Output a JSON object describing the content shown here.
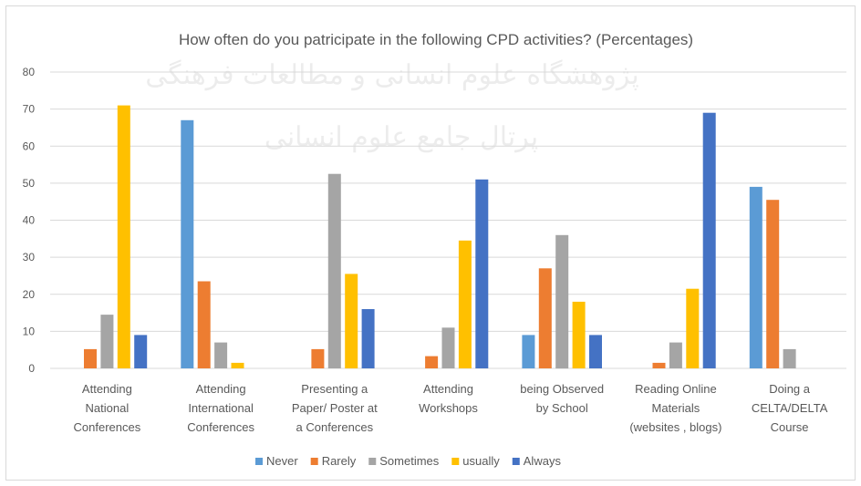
{
  "chart_data": {
    "type": "bar",
    "title": "How often do you patricipate in the following CPD activities? (Percentages)",
    "watermark": [
      "پژوهشگاه علوم انسانی و مطالعات فرهنگی",
      "پرتال جامع علوم انسانی"
    ],
    "categories": [
      [
        "Attending",
        "National",
        "Conferences"
      ],
      [
        "Attending",
        "International",
        "Conferences"
      ],
      [
        "Presenting a",
        "Paper/ Poster at",
        "a Conferences"
      ],
      [
        "Attending",
        "Workshops"
      ],
      [
        "being Observed",
        "by School"
      ],
      [
        "Reading Online",
        "Materials",
        "(websites , blogs)"
      ],
      [
        "Doing a",
        "CELTA/DELTA",
        "Course"
      ]
    ],
    "series": [
      {
        "name": "Never",
        "color": "#5b9bd5",
        "values": [
          0,
          67,
          0,
          0,
          9,
          0,
          49
        ]
      },
      {
        "name": "Rarely",
        "color": "#ed7d31",
        "values": [
          5.2,
          23.5,
          5.2,
          3.3,
          27,
          1.5,
          45.5
        ]
      },
      {
        "name": "Sometimes",
        "color": "#a5a5a5",
        "values": [
          14.5,
          7,
          52.5,
          11,
          36,
          7,
          5.2
        ]
      },
      {
        "name": "usually",
        "color": "#ffc000",
        "values": [
          71,
          1.5,
          25.5,
          34.5,
          18,
          21.5,
          0
        ]
      },
      {
        "name": "Always",
        "color": "#4472c4",
        "values": [
          9,
          0,
          16,
          51,
          9,
          69,
          0
        ]
      }
    ],
    "ylim": [
      0,
      80
    ],
    "yticks": [
      0,
      10,
      20,
      30,
      40,
      50,
      60,
      70,
      80
    ],
    "grid": true,
    "legend": "bottom"
  }
}
